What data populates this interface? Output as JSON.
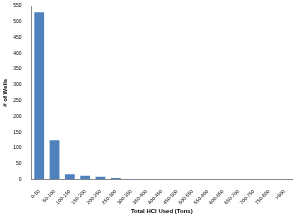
{
  "chart_data": {
    "type": "bar",
    "x_label": "Total HCl Used (Tons)",
    "y_label": "# of Wells",
    "categories": [
      "0-50",
      "50-100",
      "100-150",
      "150-200",
      "200-250",
      "250-300",
      "300-350",
      "350-400",
      "400-450",
      "450-500",
      "500-550",
      "550-600",
      "600-650",
      "650-700",
      "700-750",
      "750-800",
      ">800"
    ],
    "values": [
      530,
      125,
      17,
      12,
      9,
      5,
      2,
      1,
      1,
      0,
      1,
      0,
      0,
      0,
      0,
      0,
      1
    ],
    "color": "#4f81bd",
    "ylim": [
      0,
      550
    ],
    "yticks": [
      0,
      50,
      100,
      150,
      200,
      250,
      300,
      350,
      400,
      450,
      500,
      550
    ],
    "grid": false
  }
}
